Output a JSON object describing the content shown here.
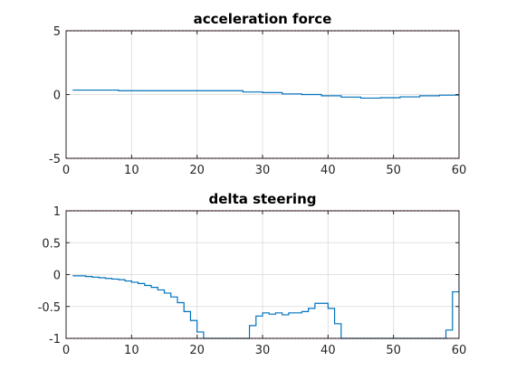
{
  "chart_data": [
    {
      "type": "line",
      "title": "acceleration force",
      "xlabel": "",
      "ylabel": "",
      "xlim": [
        0,
        60
      ],
      "ylim": [
        -5,
        5
      ],
      "xticks": [
        0,
        10,
        20,
        30,
        40,
        50,
        60
      ],
      "yticks": [
        -5,
        0,
        5
      ],
      "xtick_labels": [
        "0",
        "10",
        "20",
        "30",
        "40",
        "50",
        "60"
      ],
      "ytick_labels": [
        "-5",
        "0",
        "5"
      ],
      "grid": true,
      "limits": [
        5,
        -5
      ],
      "limit_color": "#d62728",
      "series": [
        {
          "step": true,
          "color": "#0072bd",
          "x": [
            1,
            8,
            27,
            30,
            33,
            36,
            39,
            42,
            45,
            48,
            51,
            54,
            57,
            60
          ],
          "y": [
            0.35,
            0.3,
            0.2,
            0.15,
            0.05,
            0.0,
            -0.1,
            -0.2,
            -0.28,
            -0.25,
            -0.18,
            -0.1,
            -0.05,
            0.0
          ]
        }
      ]
    },
    {
      "type": "line",
      "title": "delta steering",
      "xlabel": "",
      "ylabel": "",
      "xlim": [
        0,
        60
      ],
      "ylim": [
        -1,
        1
      ],
      "xticks": [
        0,
        10,
        20,
        30,
        40,
        50,
        60
      ],
      "yticks": [
        -1,
        -0.5,
        0,
        0.5,
        1
      ],
      "xtick_labels": [
        "0",
        "10",
        "20",
        "30",
        "40",
        "50",
        "60"
      ],
      "ytick_labels": [
        "-1",
        "-0.5",
        "0",
        "0.5",
        "1"
      ],
      "grid": true,
      "limits": [
        1,
        -1
      ],
      "limit_color": "#d62728",
      "series": [
        {
          "step": true,
          "color": "#0072bd",
          "x": [
            1,
            2,
            3,
            4,
            5,
            6,
            7,
            8,
            9,
            10,
            11,
            12,
            13,
            14,
            15,
            16,
            17,
            18,
            19,
            20,
            21,
            22,
            28,
            29,
            30,
            31,
            32,
            33,
            34,
            35,
            36,
            37,
            38,
            39,
            40,
            41,
            42,
            58,
            59,
            60
          ],
          "y": [
            -0.02,
            -0.02,
            -0.03,
            -0.04,
            -0.05,
            -0.06,
            -0.07,
            -0.08,
            -0.1,
            -0.12,
            -0.14,
            -0.17,
            -0.2,
            -0.24,
            -0.29,
            -0.35,
            -0.44,
            -0.58,
            -0.72,
            -0.9,
            -1.0,
            -1.0,
            -0.8,
            -0.65,
            -0.6,
            -0.62,
            -0.6,
            -0.63,
            -0.6,
            -0.6,
            -0.58,
            -0.53,
            -0.45,
            -0.45,
            -0.53,
            -0.77,
            -1.0,
            -0.87,
            -0.27,
            0.0
          ]
        }
      ]
    }
  ]
}
